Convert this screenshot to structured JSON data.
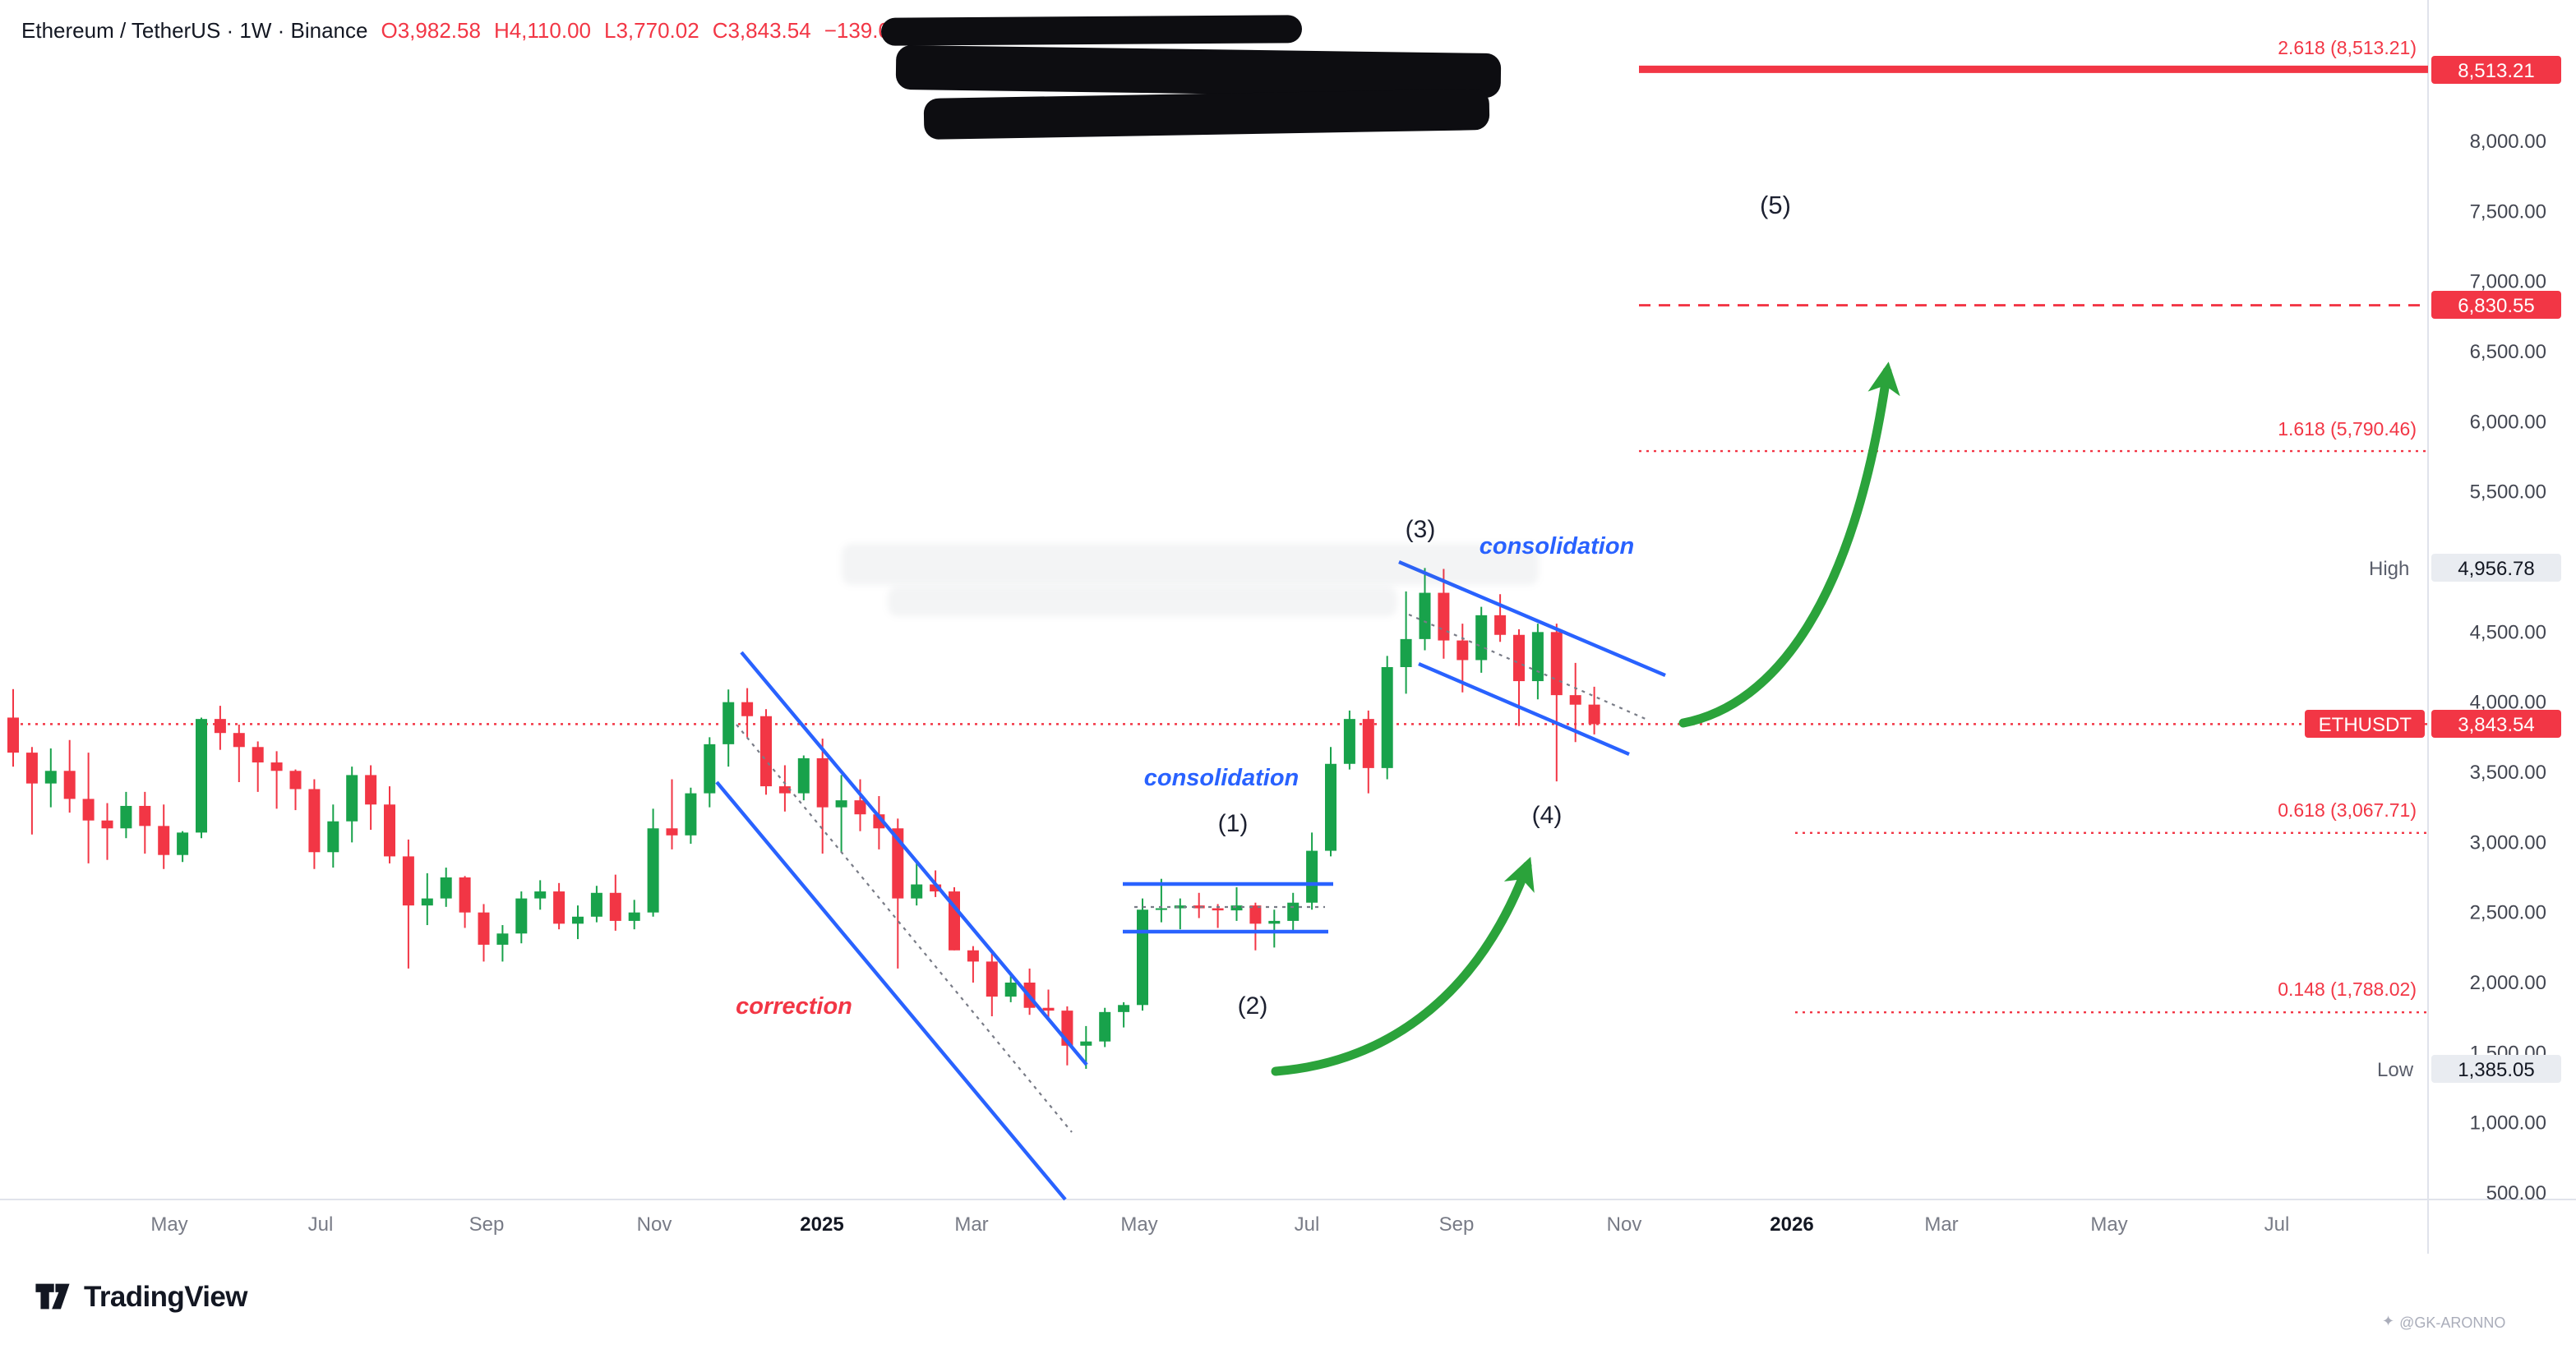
{
  "header": {
    "symbol_title": "Ethereum / TetherUS · 1W · Binance",
    "open_label": "O3,982.58",
    "high_label": "H4,110.00",
    "low_label": "L3,770.02",
    "close_label": "C3,843.54",
    "change_label": "−139.04 ("
  },
  "chart_data": {
    "type": "candlestick",
    "symbol": "ETHUSDT",
    "timeframe": "1W",
    "exchange": "Binance",
    "current_bar": {
      "open": 3982.58,
      "high": 4110.0,
      "low": 3770.02,
      "close": 3843.54,
      "change": -139.04
    },
    "last_price": {
      "tag": "ETHUSDT",
      "value": "3,843.54",
      "price": 3843.54
    },
    "high_marker": {
      "label": "High",
      "value": "4,956.78",
      "price": 4956.78
    },
    "low_marker": {
      "label": "Low",
      "value": "1,385.05",
      "price": 1385.05
    },
    "candles": [
      [
        3890,
        4093,
        3540,
        3640
      ],
      [
        3640,
        3680,
        3056,
        3420
      ],
      [
        3420,
        3670,
        3250,
        3510
      ],
      [
        3510,
        3730,
        3212,
        3310
      ],
      [
        3310,
        3640,
        2850,
        3156
      ],
      [
        3156,
        3280,
        2875,
        3100
      ],
      [
        3100,
        3360,
        3030,
        3260
      ],
      [
        3260,
        3360,
        2920,
        3117
      ],
      [
        3117,
        3270,
        2810,
        2910
      ],
      [
        2910,
        3080,
        2860,
        3070
      ],
      [
        3070,
        3890,
        3030,
        3880
      ],
      [
        3880,
        3974,
        3660,
        3780
      ],
      [
        3780,
        3840,
        3430,
        3680
      ],
      [
        3680,
        3720,
        3360,
        3570
      ],
      [
        3570,
        3650,
        3240,
        3510
      ],
      [
        3510,
        3520,
        3230,
        3380
      ],
      [
        3380,
        3450,
        2810,
        2930
      ],
      [
        2930,
        3270,
        2820,
        3150
      ],
      [
        3150,
        3540,
        3000,
        3480
      ],
      [
        3480,
        3550,
        3090,
        3270
      ],
      [
        3270,
        3400,
        2850,
        2900
      ],
      [
        2900,
        3020,
        2100,
        2550
      ],
      [
        2550,
        2780,
        2410,
        2600
      ],
      [
        2600,
        2820,
        2540,
        2750
      ],
      [
        2750,
        2760,
        2390,
        2500
      ],
      [
        2500,
        2560,
        2150,
        2270
      ],
      [
        2270,
        2410,
        2150,
        2350
      ],
      [
        2350,
        2650,
        2280,
        2600
      ],
      [
        2600,
        2730,
        2520,
        2650
      ],
      [
        2650,
        2710,
        2380,
        2420
      ],
      [
        2420,
        2550,
        2310,
        2470
      ],
      [
        2470,
        2690,
        2430,
        2640
      ],
      [
        2640,
        2770,
        2370,
        2440
      ],
      [
        2440,
        2590,
        2380,
        2500
      ],
      [
        2500,
        3240,
        2470,
        3100
      ],
      [
        3100,
        3450,
        2950,
        3050
      ],
      [
        3050,
        3390,
        2990,
        3350
      ],
      [
        3350,
        3750,
        3250,
        3700
      ],
      [
        3700,
        4090,
        3540,
        4000
      ],
      [
        4000,
        4100,
        3750,
        3900
      ],
      [
        3900,
        3950,
        3340,
        3400
      ],
      [
        3400,
        3550,
        3220,
        3350
      ],
      [
        3350,
        3620,
        3300,
        3600
      ],
      [
        3600,
        3740,
        2920,
        3250
      ],
      [
        3250,
        3480,
        2930,
        3300
      ],
      [
        3300,
        3450,
        3080,
        3200
      ],
      [
        3200,
        3330,
        2950,
        3100
      ],
      [
        3100,
        3170,
        2100,
        2600
      ],
      [
        2600,
        2850,
        2550,
        2700
      ],
      [
        2700,
        2800,
        2610,
        2650
      ],
      [
        2650,
        2680,
        2230,
        2230
      ],
      [
        2230,
        2260,
        2000,
        2150
      ],
      [
        2150,
        2210,
        1760,
        1900
      ],
      [
        1900,
        2070,
        1860,
        2000
      ],
      [
        2000,
        2100,
        1770,
        1820
      ],
      [
        1820,
        1950,
        1750,
        1800
      ],
      [
        1800,
        1830,
        1410,
        1550
      ],
      [
        1550,
        1690,
        1385.05,
        1580
      ],
      [
        1580,
        1820,
        1540,
        1790
      ],
      [
        1790,
        1860,
        1680,
        1840
      ],
      [
        1840,
        2600,
        1800,
        2520
      ],
      [
        2520,
        2740,
        2430,
        2530
      ],
      [
        2530,
        2600,
        2380,
        2550
      ],
      [
        2550,
        2640,
        2460,
        2530
      ],
      [
        2530,
        2560,
        2390,
        2515
      ],
      [
        2515,
        2680,
        2440,
        2550
      ],
      [
        2550,
        2570,
        2230,
        2420
      ],
      [
        2420,
        2520,
        2250,
        2440
      ],
      [
        2440,
        2640,
        2370,
        2570
      ],
      [
        2570,
        3070,
        2520,
        2940
      ],
      [
        2940,
        3680,
        2900,
        3560
      ],
      [
        3560,
        3940,
        3520,
        3880
      ],
      [
        3880,
        3940,
        3350,
        3530
      ],
      [
        3530,
        4330,
        3450,
        4250
      ],
      [
        4250,
        4790,
        4060,
        4450
      ],
      [
        4450,
        4956.78,
        4370,
        4780
      ],
      [
        4780,
        4950,
        4310,
        4440
      ],
      [
        4440,
        4560,
        4070,
        4300
      ],
      [
        4300,
        4680,
        4210,
        4620
      ],
      [
        4620,
        4770,
        4430,
        4480
      ],
      [
        4480,
        4520,
        3830,
        4150
      ],
      [
        4150,
        4560,
        4020,
        4500
      ],
      [
        4500,
        4560,
        3435,
        4050
      ],
      [
        4050,
        4280,
        3715,
        3982
      ],
      [
        3982.58,
        4110,
        3770.02,
        3843.54
      ]
    ],
    "price_axis": {
      "ticks": [
        {
          "label": "8,000.00",
          "price": 8000
        },
        {
          "label": "7,500.00",
          "price": 7500
        },
        {
          "label": "7,000.00",
          "price": 7000
        },
        {
          "label": "6,500.00",
          "price": 6500
        },
        {
          "label": "6,000.00",
          "price": 6000
        },
        {
          "label": "5,500.00",
          "price": 5500
        },
        {
          "label": "4,500.00",
          "price": 4500
        },
        {
          "label": "4,000.00",
          "price": 4000
        },
        {
          "label": "3,500.00",
          "price": 3500
        },
        {
          "label": "3,000.00",
          "price": 3000
        },
        {
          "label": "2,500.00",
          "price": 2500
        },
        {
          "label": "2,000.00",
          "price": 2000
        },
        {
          "label": "1,500.00",
          "price": 1500
        },
        {
          "label": "1,000.00",
          "price": 1000
        },
        {
          "label": "500.00",
          "price": 500
        }
      ]
    },
    "time_axis": {
      "labels": [
        "May",
        "Jul",
        "Sep",
        "Nov",
        "2025",
        "Mar",
        "May",
        "Jul",
        "Sep",
        "Nov",
        "2026",
        "Mar",
        "May",
        "Jul"
      ]
    },
    "fib_levels": [
      {
        "label": "2.618 (8,513.21)",
        "price": 8513.21,
        "style": "solid",
        "axis_badge": "8,513.21"
      },
      {
        "label": "",
        "price": 6830.55,
        "style": "dashed",
        "axis_badge": "6,830.55"
      },
      {
        "label": "1.618 (5,790.46)",
        "price": 5790.46,
        "style": "dotted"
      },
      {
        "label": "0.618 (3,067.71)",
        "price": 3067.71,
        "style": "dotted",
        "start": "late"
      },
      {
        "label": "0.148 (1,788.02)",
        "price": 1788.02,
        "style": "dotted",
        "start": "late"
      }
    ],
    "annotations": {
      "wave1": "(1)",
      "wave2": "(2)",
      "wave3": "(3)",
      "wave4": "(4)",
      "wave5": "(5)",
      "consolidation_1": "consolidation",
      "consolidation_2": "consolidation",
      "correction": "correction"
    },
    "colors": {
      "up": "#18a24b",
      "down": "#f23645",
      "annotation_blue": "#2962ff",
      "fib_red": "#f23645",
      "arrow_green": "#2ba33b",
      "axis_text": "#434651"
    }
  },
  "footer": {
    "logo_text": "TradingView"
  },
  "watermark": {
    "credit_icon": "✦",
    "credit": "@GK-ARONNO"
  }
}
